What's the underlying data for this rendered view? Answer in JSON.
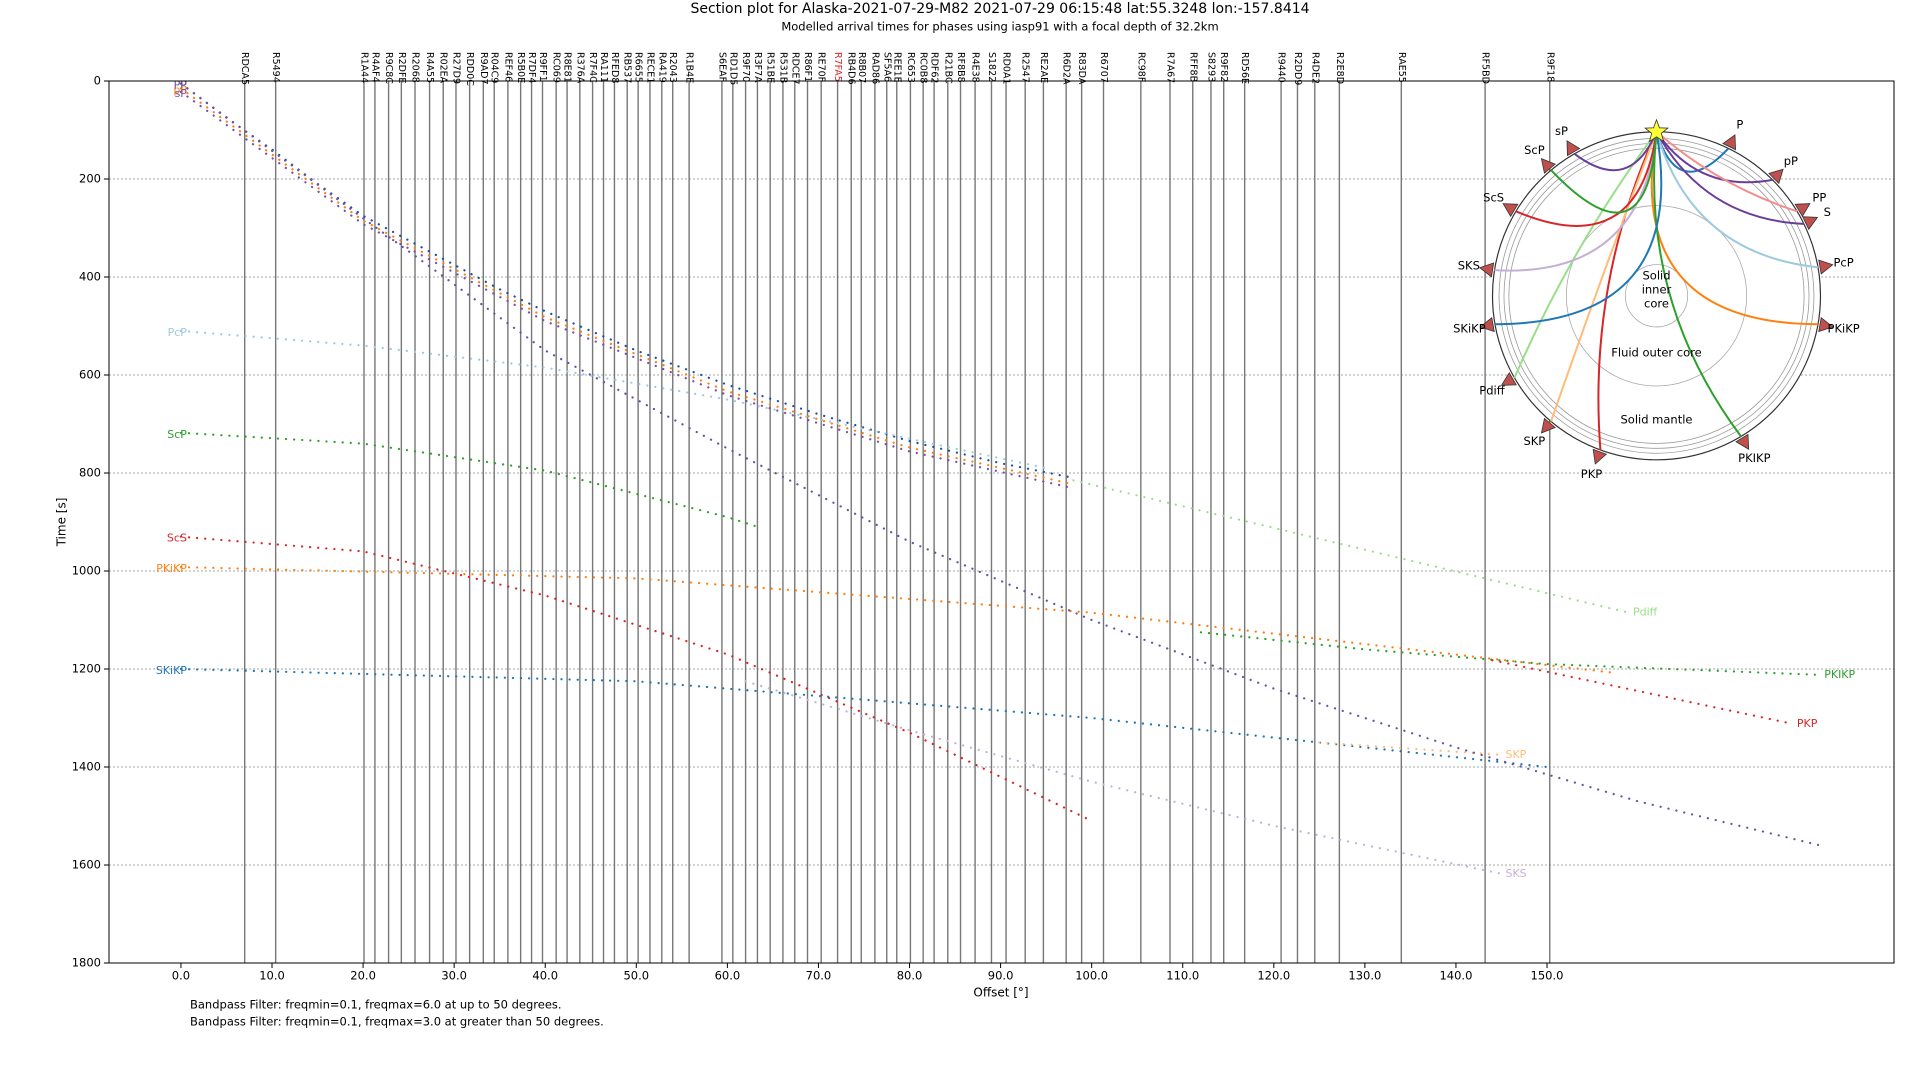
{
  "chart_data": {
    "type": "section",
    "title": "Section plot for Alaska-2021-07-29-M82 2021-07-29 06:15:48 lat:55.3248 lon:-157.8414",
    "subtitle": "Modelled arrival times for phases using iasp91 with a focal depth of 32.2km",
    "x_label": "Offset [°]",
    "y_label": "Time [s]",
    "notes": [
      "Bandpass Filter: freqmin=0.1, freqmax=6.0 at up to 50 degrees.",
      "Bandpass Filter: freqmin=0.1, freqmax=3.0 at greater than 50 degrees."
    ],
    "xlim": [
      -7.9,
      188.1
    ],
    "ylim": [
      1800,
      0
    ],
    "xticks": [
      {
        "value": 0,
        "label": "0.0"
      },
      {
        "value": 10,
        "label": "10.0"
      },
      {
        "value": 20,
        "label": "20.0"
      },
      {
        "value": 30,
        "label": "30.0"
      },
      {
        "value": 40,
        "label": "40.0"
      },
      {
        "value": 50,
        "label": "50.0"
      },
      {
        "value": 60,
        "label": "60.0"
      },
      {
        "value": 70,
        "label": "70.0"
      },
      {
        "value": 80,
        "label": "80.0"
      },
      {
        "value": 90,
        "label": "90.0"
      },
      {
        "value": 100,
        "label": "100.0"
      },
      {
        "value": 110,
        "label": "110.0"
      },
      {
        "value": 120,
        "label": "120.0"
      },
      {
        "value": 130,
        "label": "130.0"
      },
      {
        "value": 140,
        "label": "140.0"
      },
      {
        "value": 150,
        "label": "150.0"
      }
    ],
    "yticks": [
      0,
      200,
      400,
      600,
      800,
      1000,
      1200,
      1400,
      1600,
      1800
    ],
    "grid": "y",
    "trace_color": "#777777",
    "stations": [
      {
        "name": "RDCA5",
        "offset": 7.0
      },
      {
        "name": "R5494",
        "offset": 10.4
      },
      {
        "name": "R1A44",
        "offset": 20.1
      },
      {
        "name": "R4AF4",
        "offset": 21.3
      },
      {
        "name": "R9C8C",
        "offset": 22.8
      },
      {
        "name": "R2DFE",
        "offset": 24.2
      },
      {
        "name": "R2068",
        "offset": 25.7
      },
      {
        "name": "R4A55",
        "offset": 27.3
      },
      {
        "name": "R02EA",
        "offset": 28.8
      },
      {
        "name": "R27D9",
        "offset": 30.2
      },
      {
        "name": "RDD0C",
        "offset": 31.7
      },
      {
        "name": "R9AD7",
        "offset": 33.2
      },
      {
        "name": "R04C9",
        "offset": 34.4
      },
      {
        "name": "REF46",
        "offset": 35.9
      },
      {
        "name": "R5B0E",
        "offset": 37.3
      },
      {
        "name": "R7DF4",
        "offset": 38.5
      },
      {
        "name": "R9FF1",
        "offset": 39.7
      },
      {
        "name": "RC069",
        "offset": 41.2
      },
      {
        "name": "R8E81",
        "offset": 42.4
      },
      {
        "name": "R376A",
        "offset": 43.8
      },
      {
        "name": "R7F4C",
        "offset": 45.2
      },
      {
        "name": "RA111",
        "offset": 46.4
      },
      {
        "name": "RFED8",
        "offset": 47.6
      },
      {
        "name": "RB537",
        "offset": 49.0
      },
      {
        "name": "R6655",
        "offset": 50.2
      },
      {
        "name": "RECE1",
        "offset": 51.5
      },
      {
        "name": "RA419",
        "offset": 52.8
      },
      {
        "name": "R2043",
        "offset": 54.0
      },
      {
        "name": "R1B4E",
        "offset": 55.8
      },
      {
        "name": "S6EAF",
        "offset": 59.4
      },
      {
        "name": "RD1D5",
        "offset": 60.6
      },
      {
        "name": "R9F70",
        "offset": 62.0
      },
      {
        "name": "R3F7A",
        "offset": 63.3
      },
      {
        "name": "R51BE",
        "offset": 64.7
      },
      {
        "name": "R531B",
        "offset": 66.1
      },
      {
        "name": "RDCE7",
        "offset": 67.4
      },
      {
        "name": "R86F1",
        "offset": 68.8
      },
      {
        "name": "RE70F",
        "offset": 70.3
      },
      {
        "name": "R7FA5",
        "offset": 72.1,
        "color": "#d62728"
      },
      {
        "name": "RB4D6",
        "offset": 73.6
      },
      {
        "name": "R8B07",
        "offset": 74.7
      },
      {
        "name": "RAD86",
        "offset": 76.2
      },
      {
        "name": "SF5A6",
        "offset": 77.5
      },
      {
        "name": "REE1E",
        "offset": 78.6
      },
      {
        "name": "RC653",
        "offset": 80.1
      },
      {
        "name": "RC0B8",
        "offset": 81.5
      },
      {
        "name": "RDF62",
        "offset": 82.7
      },
      {
        "name": "R21BC",
        "offset": 84.2
      },
      {
        "name": "RF8B8",
        "offset": 85.6
      },
      {
        "name": "R4E38",
        "offset": 87.2
      },
      {
        "name": "S1822",
        "offset": 89.0
      },
      {
        "name": "RD0A1",
        "offset": 90.6
      },
      {
        "name": "R2547",
        "offset": 92.7
      },
      {
        "name": "RE2AE",
        "offset": 94.7
      },
      {
        "name": "R6D2A",
        "offset": 97.2
      },
      {
        "name": "R83DA",
        "offset": 98.9
      },
      {
        "name": "R6707",
        "offset": 101.3
      },
      {
        "name": "RC98F",
        "offset": 105.4
      },
      {
        "name": "R7A67",
        "offset": 108.6
      },
      {
        "name": "RFF8B",
        "offset": 111.1
      },
      {
        "name": "S8293",
        "offset": 113.1
      },
      {
        "name": "R9F82",
        "offset": 114.5
      },
      {
        "name": "RD56E",
        "offset": 116.8
      },
      {
        "name": "R9440",
        "offset": 120.8
      },
      {
        "name": "R2DD9",
        "offset": 122.6
      },
      {
        "name": "R4DE2",
        "offset": 124.5
      },
      {
        "name": "R2E8D",
        "offset": 127.2
      },
      {
        "name": "RAE55",
        "offset": 134.0
      },
      {
        "name": "RF5BD",
        "offset": 143.2
      },
      {
        "name": "R9F18",
        "offset": 150.3
      }
    ],
    "series": [
      {
        "name": "P",
        "color": "#1f4e9a",
        "x": [
          0,
          5,
          10,
          15,
          20,
          25,
          30,
          35,
          40,
          50,
          60,
          70,
          80,
          90,
          98
        ],
        "values": [
          5,
          75,
          140,
          210,
          275,
          325,
          375,
          425,
          470,
          550,
          620,
          680,
          735,
          780,
          810
        ]
      },
      {
        "name": "pP",
        "color": "#ff7f0e",
        "x": [
          0,
          20,
          40,
          60,
          80,
          98
        ],
        "values": [
          15,
          285,
          482,
          633,
          748,
          823
        ]
      },
      {
        "name": "sP",
        "color": "#7b4fa0",
        "x": [
          0,
          20,
          40,
          60,
          80,
          98
        ],
        "values": [
          22,
          292,
          490,
          641,
          756,
          831
        ]
      },
      {
        "name": "PcP",
        "color": "#9ecae1",
        "x": [
          0,
          20,
          40,
          60,
          80,
          95
        ],
        "values": [
          510,
          540,
          585,
          650,
          730,
          790
        ]
      },
      {
        "name": "ScP",
        "color": "#2ca02c",
        "x": [
          0,
          20,
          40,
          60,
          63
        ],
        "values": [
          718,
          740,
          795,
          890,
          908
        ]
      },
      {
        "name": "ScS",
        "color": "#d62728",
        "x": [
          0,
          20,
          40,
          60,
          80,
          100
        ],
        "values": [
          930,
          960,
          1050,
          1170,
          1330,
          1510
        ]
      },
      {
        "name": "PKiKP",
        "color": "#ff7f0e",
        "x": [
          0,
          50,
          100,
          157
        ],
        "values": [
          992,
          1015,
          1085,
          1207
        ]
      },
      {
        "name": "SKiKP",
        "color": "#1f77b4",
        "x": [
          0,
          50,
          100,
          150
        ],
        "values": [
          1200,
          1225,
          1300,
          1400
        ]
      },
      {
        "name": "PKIKP",
        "color": "#2ca02c",
        "x": [
          112,
          130,
          150,
          180
        ],
        "values": [
          1125,
          1160,
          1190,
          1212
        ]
      },
      {
        "name": "PKP",
        "color": "#d62728",
        "x": [
          144,
          160,
          177
        ],
        "values": [
          1182,
          1245,
          1312
        ]
      },
      {
        "name": "SKS",
        "color": "#c5b0d5",
        "x": [
          62,
          80,
          100,
          120,
          145
        ],
        "values": [
          1225,
          1325,
          1430,
          1520,
          1618
        ]
      },
      {
        "name": "SKP",
        "color": "#ffbb78",
        "x": [
          125,
          145
        ],
        "values": [
          1350,
          1375
        ]
      },
      {
        "name": "Pdiff",
        "color": "#98df8a",
        "x": [
          98,
          120,
          140,
          159
        ],
        "values": [
          815,
          912,
          1001,
          1085
        ]
      },
      {
        "name": "PP",
        "color": "#6a51a3",
        "x": [
          0,
          20,
          40,
          60,
          80,
          100,
          120,
          140,
          160,
          180
        ],
        "values": [
          5,
          280,
          550,
          750,
          940,
          1100,
          1240,
          1360,
          1470,
          1560
        ]
      }
    ],
    "inset": {
      "inner_core": [
        "Solid",
        "inner",
        "core"
      ],
      "outer_core": "Fluid outer core",
      "mantle": "Solid mantle",
      "receiver_color": "#c0504d",
      "source_color": "#ffff33",
      "phases": [
        {
          "name": "P",
          "color": "#1f77b4"
        },
        {
          "name": "pP",
          "color": "#6a3d9a"
        },
        {
          "name": "PP",
          "color": "#f28e8e"
        },
        {
          "name": "S",
          "color": "#6a3d9a"
        },
        {
          "name": "PcP",
          "color": "#9ecae1"
        },
        {
          "name": "PKiKP",
          "color": "#ff7f0e"
        },
        {
          "name": "PKIKP",
          "color": "#2ca02c"
        },
        {
          "name": "PKP",
          "color": "#d62728"
        },
        {
          "name": "SKP",
          "color": "#ffbb78"
        },
        {
          "name": "Pdiff",
          "color": "#98df8a"
        },
        {
          "name": "SKiKP",
          "color": "#1f77b4"
        },
        {
          "name": "SKS",
          "color": "#c5b0d5"
        },
        {
          "name": "ScS",
          "color": "#d62728"
        },
        {
          "name": "ScP",
          "color": "#2ca02c"
        },
        {
          "name": "sP",
          "color": "#6a3d9a"
        }
      ]
    }
  }
}
